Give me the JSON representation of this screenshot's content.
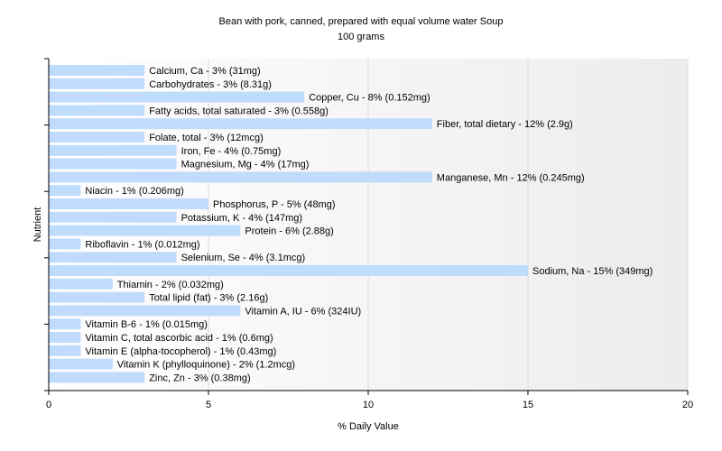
{
  "chart_data": {
    "type": "bar",
    "orientation": "horizontal",
    "title": "Bean with pork, canned, prepared with equal volume water Soup",
    "subtitle": "100 grams",
    "xlabel": "% Daily Value",
    "ylabel": "Nutrient",
    "xlim": [
      0,
      20
    ],
    "xticks": [
      0,
      5,
      10,
      15,
      20
    ],
    "grid": true,
    "bar_color": "#c0dcfc",
    "categories": [
      "Calcium, Ca",
      "Carbohydrates",
      "Copper, Cu",
      "Fatty acids, total saturated",
      "Fiber, total dietary",
      "Folate, total",
      "Iron, Fe",
      "Magnesium, Mg",
      "Manganese, Mn",
      "Niacin",
      "Phosphorus, P",
      "Potassium, K",
      "Protein",
      "Riboflavin",
      "Selenium, Se",
      "Sodium, Na",
      "Thiamin",
      "Total lipid (fat)",
      "Vitamin A, IU",
      "Vitamin B-6",
      "Vitamin C, total ascorbic acid",
      "Vitamin E (alpha-tocopherol)",
      "Vitamin K (phylloquinone)",
      "Zinc, Zn"
    ],
    "values": [
      3,
      3,
      8,
      3,
      12,
      3,
      4,
      4,
      12,
      1,
      5,
      4,
      6,
      1,
      4,
      15,
      2,
      3,
      6,
      1,
      1,
      1,
      2,
      3
    ],
    "labels": [
      "Calcium, Ca - 3% (31mg)",
      "Carbohydrates - 3% (8.31g)",
      "Copper, Cu - 8% (0.152mg)",
      "Fatty acids, total saturated - 3% (0.558g)",
      "Fiber, total dietary - 12% (2.9g)",
      "Folate, total - 3% (12mcg)",
      "Iron, Fe - 4% (0.75mg)",
      "Magnesium, Mg - 4% (17mg)",
      "Manganese, Mn - 12% (0.245mg)",
      "Niacin - 1% (0.206mg)",
      "Phosphorus, P - 5% (48mg)",
      "Potassium, K - 4% (147mg)",
      "Protein - 6% (2.88g)",
      "Riboflavin - 1% (0.012mg)",
      "Selenium, Se - 4% (3.1mcg)",
      "Sodium, Na - 15% (349mg)",
      "Thiamin - 2% (0.032mg)",
      "Total lipid (fat) - 3% (2.16g)",
      "Vitamin A, IU - 6% (324IU)",
      "Vitamin B-6 - 1% (0.015mg)",
      "Vitamin C, total ascorbic acid - 1% (0.6mg)",
      "Vitamin E (alpha-tocopherol) - 1% (0.43mg)",
      "Vitamin K (phylloquinone) - 2% (1.2mcg)",
      "Zinc, Zn - 3% (0.38mg)"
    ]
  }
}
